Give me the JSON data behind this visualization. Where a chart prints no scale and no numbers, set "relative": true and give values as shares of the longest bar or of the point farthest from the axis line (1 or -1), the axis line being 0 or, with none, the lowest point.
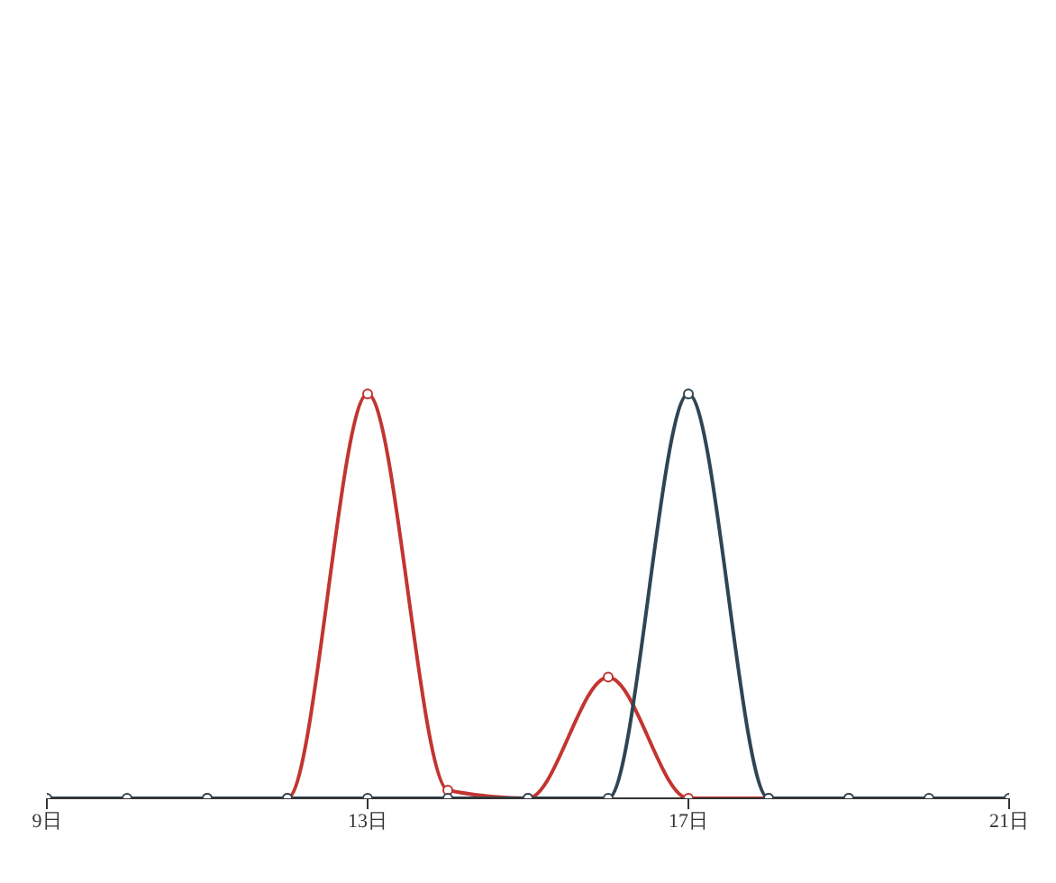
{
  "chart_data": {
    "type": "line",
    "relative": true,
    "x": [
      9,
      10,
      11,
      12,
      13,
      14,
      15,
      16,
      17,
      18,
      19,
      20,
      21
    ],
    "xlim": [
      9,
      21
    ],
    "xticks": [
      {
        "value": 9,
        "label": "9日"
      },
      {
        "value": 13,
        "label": "13日"
      },
      {
        "value": 17,
        "label": "17日"
      },
      {
        "value": 21,
        "label": "21日"
      }
    ],
    "series": [
      {
        "color": "#c23531",
        "values": [
          null,
          null,
          0,
          0,
          1,
          0.02,
          0,
          0.3,
          0,
          0,
          0,
          null,
          null
        ]
      },
      {
        "color": "#2f4554",
        "values": [
          0,
          0,
          0,
          0,
          0,
          0,
          0,
          0,
          1,
          0,
          0,
          0,
          0
        ]
      }
    ],
    "marker": "circle",
    "line_style": "solid"
  }
}
